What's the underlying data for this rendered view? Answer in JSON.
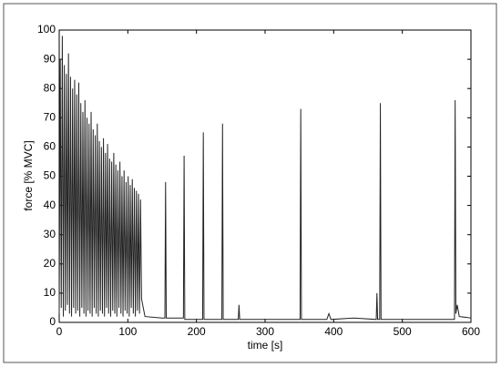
{
  "chart_data": {
    "type": "line",
    "xlabel": "time [s]",
    "ylabel": "force [% MVC]",
    "x": [
      0,
      1.5,
      3,
      4.5,
      6,
      7.5,
      9,
      10.5,
      12,
      13.5,
      15,
      16.5,
      18,
      19.5,
      21,
      22.5,
      24,
      25.5,
      27,
      28.5,
      30,
      31.5,
      33,
      34.5,
      36,
      37.5,
      39,
      40.5,
      42,
      43.5,
      45,
      46.5,
      48,
      49.5,
      51,
      52.5,
      54,
      55.5,
      57,
      58.5,
      60,
      61.5,
      63,
      64.5,
      66,
      67.5,
      69,
      70.5,
      72,
      73.5,
      75,
      76.5,
      78,
      79.5,
      81,
      82.5,
      84,
      85.5,
      87,
      88.5,
      90,
      91.5,
      93,
      94.5,
      96,
      97.5,
      99,
      100.5,
      102,
      103.5,
      105,
      106.5,
      108,
      109.5,
      111,
      112.5,
      114,
      115.5,
      117,
      118.5,
      120,
      125,
      150,
      154,
      155,
      156,
      181,
      182,
      183,
      209,
      210,
      211,
      237,
      238,
      239,
      261,
      262,
      263,
      300,
      351,
      352,
      353,
      390,
      393,
      396,
      430,
      462,
      463,
      464,
      467,
      468,
      469,
      500,
      576,
      577,
      578,
      580,
      583,
      600
    ],
    "series": [
      {
        "color": "#222222",
        "values": [
          3,
          90,
          5,
          98,
          2,
          88,
          4,
          85,
          6,
          92,
          3,
          84,
          2,
          80,
          5,
          83,
          3,
          78,
          4,
          82,
          2,
          75,
          5,
          72,
          3,
          76,
          2,
          70,
          4,
          68,
          3,
          72,
          2,
          66,
          5,
          64,
          3,
          68,
          2,
          62,
          4,
          60,
          3,
          63,
          2,
          58,
          5,
          61,
          3,
          56,
          2,
          55,
          4,
          58,
          3,
          54,
          2,
          52,
          5,
          55,
          3,
          50,
          2,
          52,
          4,
          48,
          3,
          50,
          2,
          47,
          5,
          49,
          3,
          46,
          2,
          45,
          4,
          44,
          3,
          42,
          8,
          2,
          1.5,
          1.5,
          48,
          1.5,
          1.5,
          57,
          1,
          1,
          65,
          1,
          1,
          68,
          1,
          1,
          6,
          1,
          1,
          1,
          73,
          1,
          1,
          3,
          1,
          1.5,
          1,
          10,
          1,
          1,
          75,
          1,
          1,
          1,
          76,
          3,
          6,
          2,
          1.5
        ]
      }
    ],
    "xlim": [
      0,
      600
    ],
    "xticks": [
      0,
      100,
      200,
      300,
      400,
      500,
      600
    ],
    "ylim": [
      0,
      100
    ],
    "yticks": [
      0,
      10,
      20,
      30,
      40,
      50,
      60,
      70,
      80,
      90,
      100
    ],
    "grid": false
  }
}
